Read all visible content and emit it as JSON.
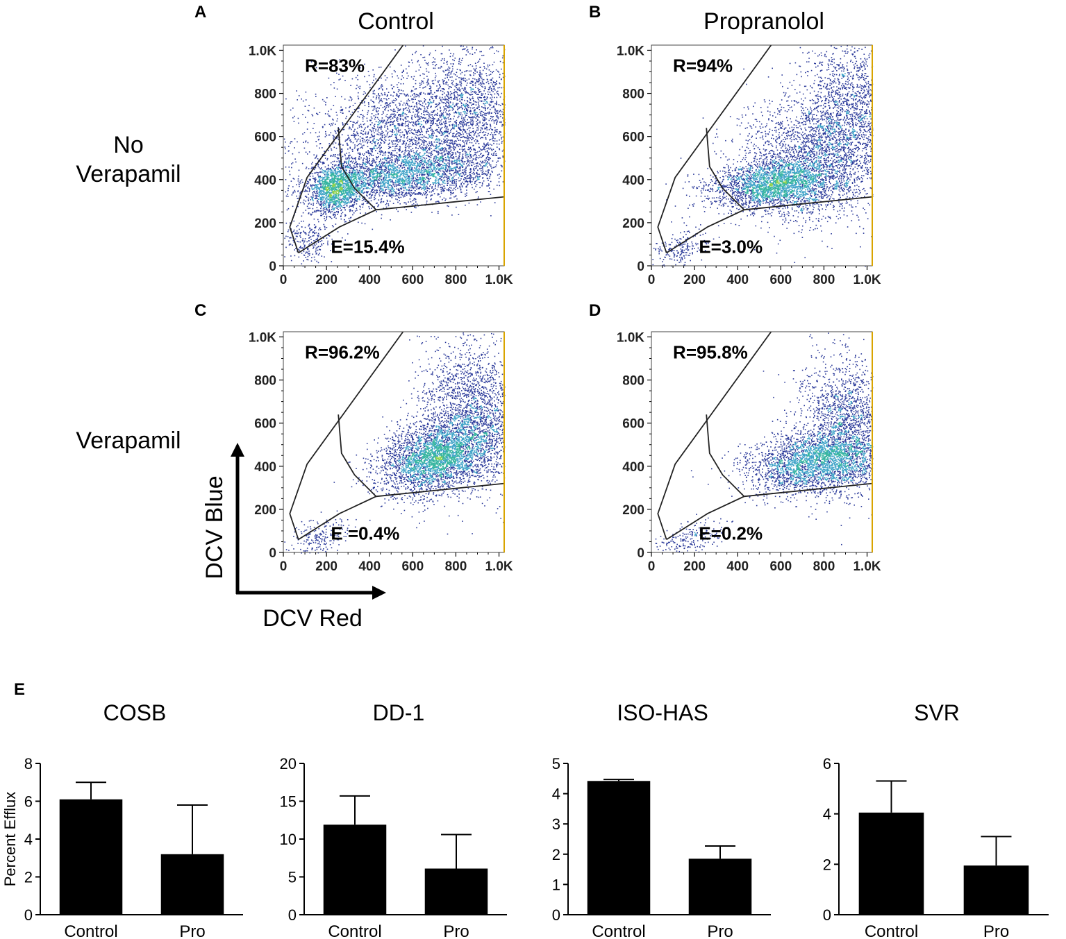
{
  "chart_data": [
    {
      "type": "scatter",
      "panel": "A",
      "title": "Control",
      "row_label": "No Verapamil",
      "xlabel": "DCV Red",
      "ylabel": "DCV Blue",
      "xlim": [
        0,
        1024
      ],
      "ylim": [
        0,
        1024
      ],
      "ticks": [
        "0",
        "200",
        "400",
        "600",
        "800",
        "1.0K"
      ],
      "gate_r_label": "R=83%",
      "gate_e_label": "E=15.4%",
      "populations": [
        {
          "cx": 560,
          "cy": 420,
          "sx": 230,
          "sy": 60,
          "n": 2600,
          "rot": 0.12
        },
        {
          "cx": 240,
          "cy": 360,
          "sx": 70,
          "sy": 55,
          "n": 1400,
          "rot": 0.9
        },
        {
          "cx": 580,
          "cy": 640,
          "sx": 260,
          "sy": 130,
          "n": 2600,
          "rot": 0.2
        },
        {
          "cx": 870,
          "cy": 720,
          "sx": 130,
          "sy": 180,
          "n": 1200,
          "rot": 0.0
        },
        {
          "cx": 110,
          "cy": 120,
          "sx": 60,
          "sy": 60,
          "n": 250,
          "rot": 0.8
        }
      ]
    },
    {
      "type": "scatter",
      "panel": "B",
      "title": "Propranolol",
      "row_label": "",
      "xlim": [
        0,
        1024
      ],
      "ylim": [
        0,
        1024
      ],
      "ticks": [
        "0",
        "200",
        "400",
        "600",
        "800",
        "1.0K"
      ],
      "gate_r_label": "R=94%",
      "gate_e_label": "E=3.0%",
      "populations": [
        {
          "cx": 560,
          "cy": 380,
          "sx": 150,
          "sy": 55,
          "n": 2400,
          "rot": 0.1
        },
        {
          "cx": 800,
          "cy": 530,
          "sx": 200,
          "sy": 150,
          "n": 3000,
          "rot": 0.35
        },
        {
          "cx": 920,
          "cy": 780,
          "sx": 100,
          "sy": 160,
          "n": 900,
          "rot": 0.0
        },
        {
          "cx": 130,
          "cy": 80,
          "sx": 70,
          "sy": 40,
          "n": 200,
          "rot": 0.5
        }
      ]
    },
    {
      "type": "scatter",
      "panel": "C",
      "title": "",
      "row_label": "Verapamil",
      "xlim": [
        0,
        1024
      ],
      "ylim": [
        0,
        1024
      ],
      "ticks": [
        "0",
        "200",
        "400",
        "600",
        "800",
        "1.0K"
      ],
      "gate_r_label": "R=96.2%",
      "gate_e_label": "E =0.4%",
      "populations": [
        {
          "cx": 700,
          "cy": 440,
          "sx": 130,
          "sy": 80,
          "n": 3200,
          "rot": 0.3
        },
        {
          "cx": 880,
          "cy": 640,
          "sx": 120,
          "sy": 170,
          "n": 2200,
          "rot": 0.2
        },
        {
          "cx": 160,
          "cy": 70,
          "sx": 80,
          "sy": 40,
          "n": 200,
          "rot": 0.3
        }
      ]
    },
    {
      "type": "scatter",
      "panel": "D",
      "title": "",
      "row_label": "",
      "xlim": [
        0,
        1024
      ],
      "ylim": [
        0,
        1024
      ],
      "ticks": [
        "0",
        "200",
        "400",
        "600",
        "800",
        "1.0K"
      ],
      "gate_r_label": "R=95.8%",
      "gate_e_label": "E=0.2%",
      "populations": [
        {
          "cx": 760,
          "cy": 420,
          "sx": 160,
          "sy": 70,
          "n": 2800,
          "rot": 0.15
        },
        {
          "cx": 900,
          "cy": 600,
          "sx": 110,
          "sy": 160,
          "n": 1800,
          "rot": 0.1
        },
        {
          "cx": 180,
          "cy": 70,
          "sx": 80,
          "sy": 35,
          "n": 200,
          "rot": 0.3
        }
      ]
    },
    {
      "type": "bar",
      "panel": "E",
      "title": "COSB",
      "ylabel": "Percent Efflux",
      "categories": [
        "Control",
        "Pro"
      ],
      "values": [
        6.1,
        3.2
      ],
      "errors": [
        0.9,
        2.6
      ],
      "ylim": [
        0,
        8
      ],
      "yticks": [
        "0",
        "2",
        "4",
        "6",
        "8"
      ]
    },
    {
      "type": "bar",
      "panel": "E",
      "title": "DD-1",
      "ylabel": "",
      "categories": [
        "Control",
        "Pro"
      ],
      "values": [
        11.9,
        6.1
      ],
      "errors": [
        3.8,
        4.5
      ],
      "ylim": [
        0,
        20
      ],
      "yticks": [
        "0",
        "5",
        "10",
        "15",
        "20"
      ]
    },
    {
      "type": "bar",
      "panel": "E",
      "title": "ISO-HAS",
      "ylabel": "",
      "categories": [
        "Control",
        "Pro"
      ],
      "values": [
        4.42,
        1.85
      ],
      "errors": [
        0.05,
        0.42
      ],
      "ylim": [
        0,
        5
      ],
      "yticks": [
        "0",
        "1",
        "2",
        "3",
        "4",
        "5"
      ]
    },
    {
      "type": "bar",
      "panel": "E",
      "title": "SVR",
      "ylabel": "",
      "categories": [
        "Control",
        "Pro"
      ],
      "values": [
        4.05,
        1.95
      ],
      "errors": [
        1.25,
        1.15
      ],
      "ylim": [
        0,
        6
      ],
      "yticks": [
        "0",
        "2",
        "4",
        "6"
      ]
    }
  ],
  "axis_arrows": {
    "x_label": "DCV Red",
    "y_label": "DCV Blue"
  },
  "panel_e_label": "E",
  "colors": {
    "bar": "#000000",
    "low_density": "#2b3a9a",
    "mid_density": "#3fa3c8",
    "high_density": "#d9e21e"
  }
}
